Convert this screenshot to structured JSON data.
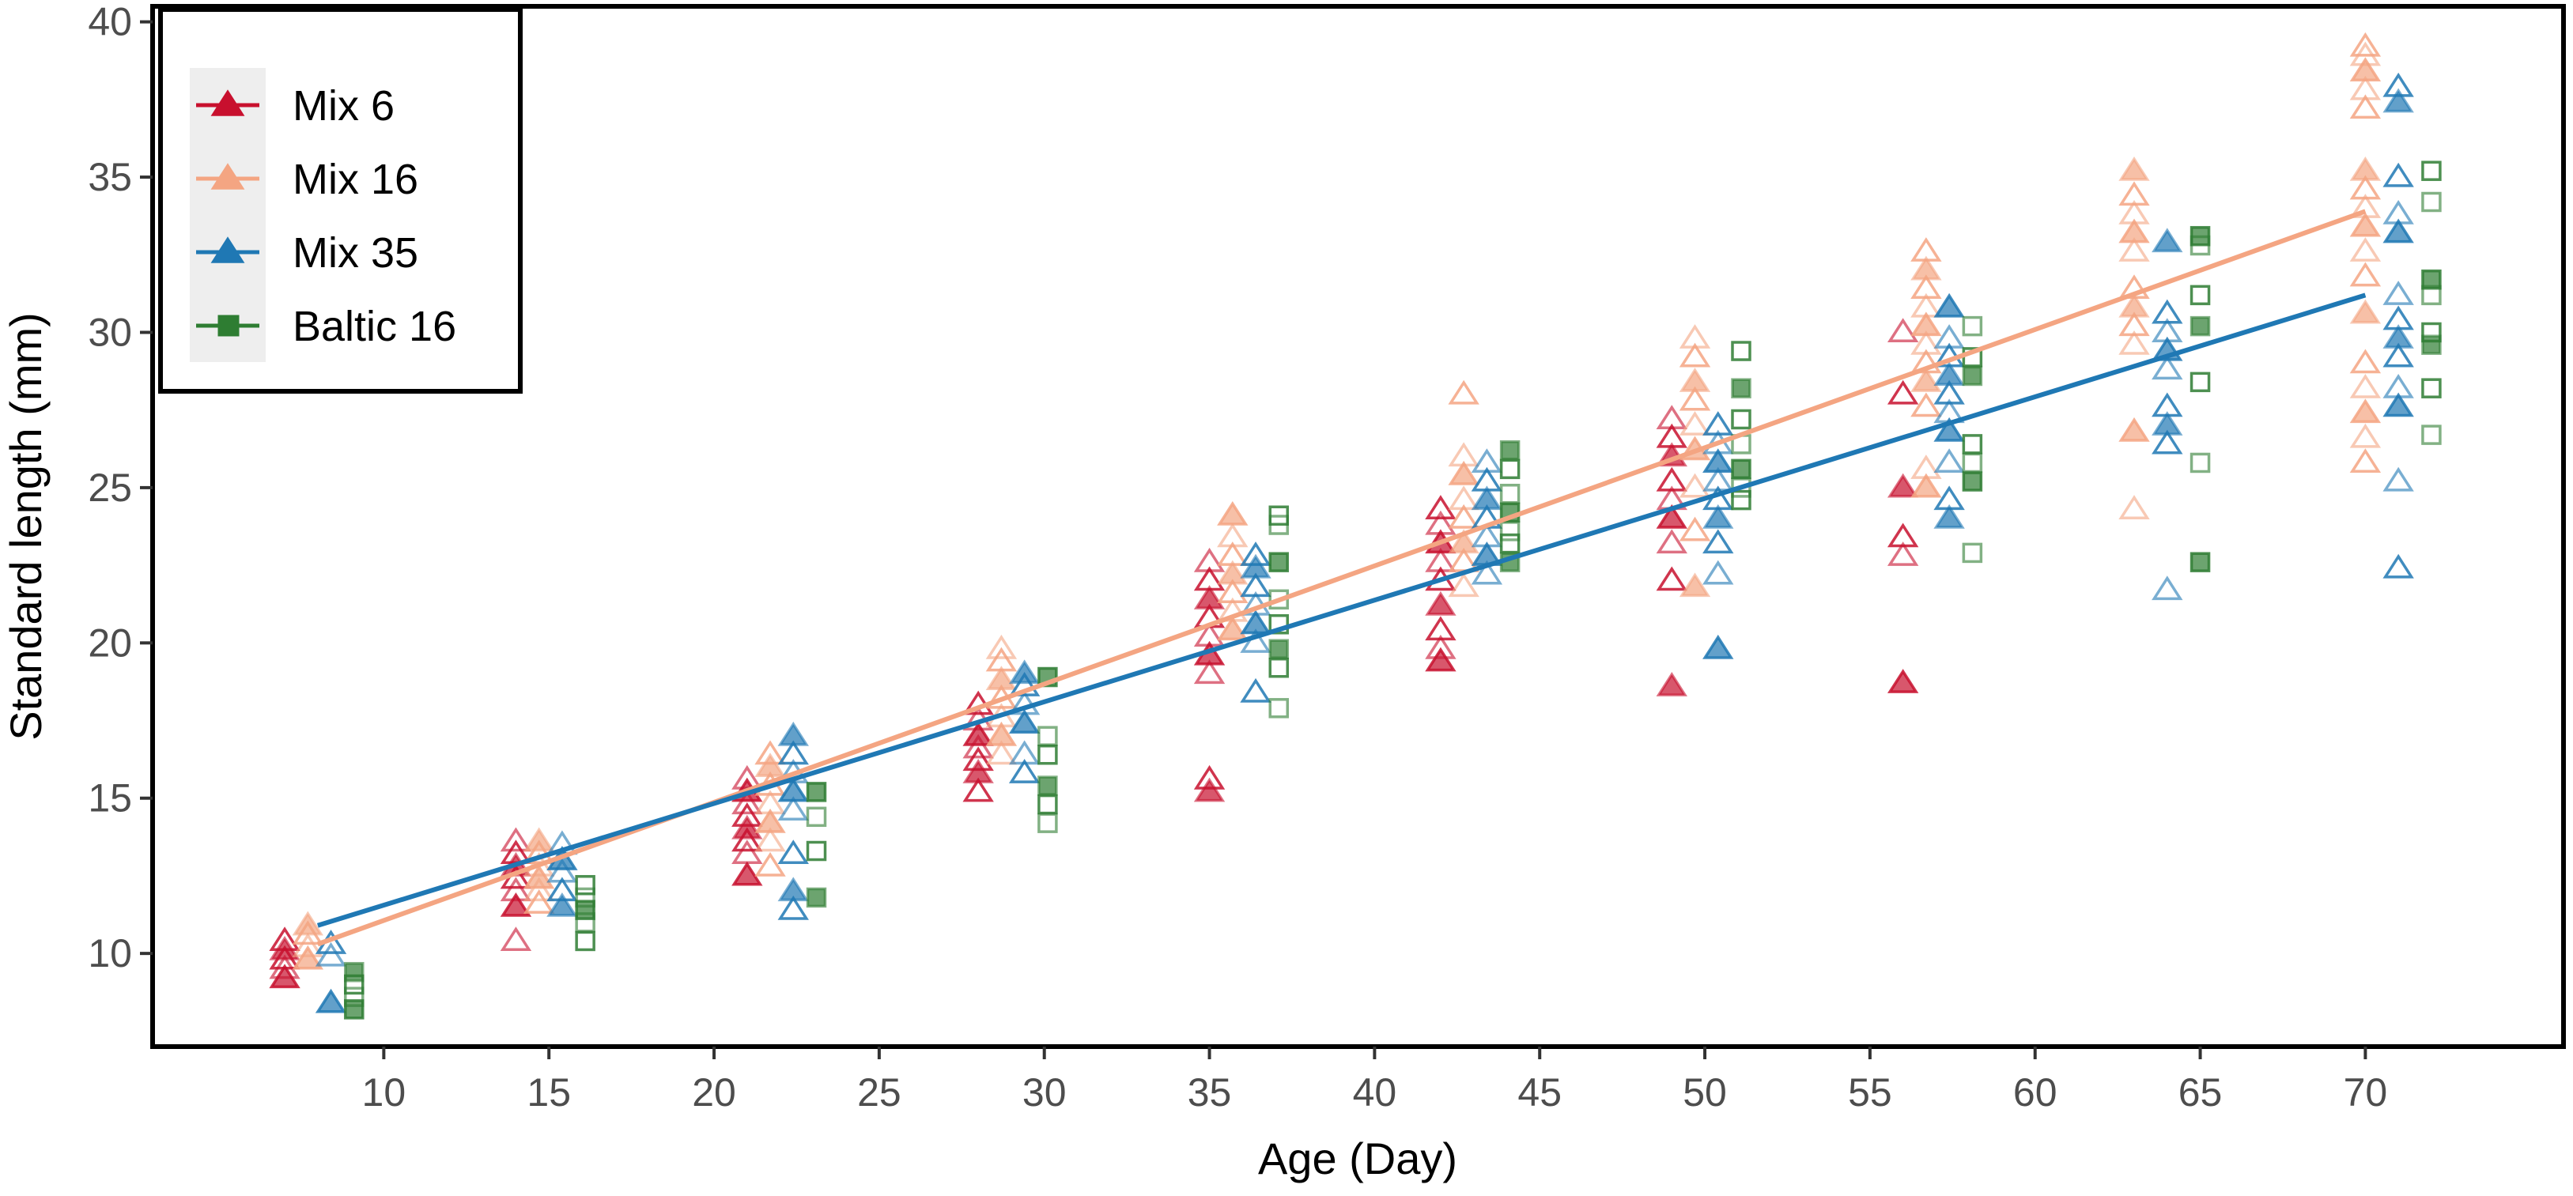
{
  "chart_data": {
    "type": "scatter",
    "title": "",
    "xlabel": "Age (Day)",
    "ylabel": "Standard length (mm)",
    "xlim": [
      3,
      76
    ],
    "ylim": [
      7,
      40.5
    ],
    "xticks": [
      10,
      15,
      20,
      25,
      30,
      35,
      40,
      45,
      50,
      55,
      60,
      65,
      70
    ],
    "yticks": [
      10,
      15,
      20,
      25,
      30,
      35,
      40
    ],
    "grid": false,
    "legend_position": "top-left",
    "colors": {
      "Mix 6": "#c8102e",
      "Mix 16": "#f4a582",
      "Mix 35": "#1f78b4",
      "Baltic 16": "#2e7d32"
    },
    "series": [
      {
        "name": "Mix 6",
        "marker": "triangle",
        "x_offset": -0.7,
        "points": [
          [
            7,
            9.2
          ],
          [
            7,
            9.5
          ],
          [
            7,
            9.8
          ],
          [
            7,
            10.1
          ],
          [
            7,
            10.4
          ],
          [
            14,
            10.4
          ],
          [
            14,
            11.5
          ],
          [
            14,
            12.0
          ],
          [
            14,
            12.4
          ],
          [
            14,
            12.8
          ],
          [
            14,
            13.2
          ],
          [
            14,
            13.6
          ],
          [
            21,
            12.5
          ],
          [
            21,
            13.2
          ],
          [
            21,
            13.6
          ],
          [
            21,
            14.0
          ],
          [
            21,
            14.4
          ],
          [
            21,
            14.8
          ],
          [
            21,
            15.2
          ],
          [
            21,
            15.6
          ],
          [
            28,
            15.2
          ],
          [
            28,
            15.8
          ],
          [
            28,
            16.2
          ],
          [
            28,
            16.6
          ],
          [
            28,
            17.0
          ],
          [
            28,
            17.5
          ],
          [
            28,
            18.0
          ],
          [
            35,
            15.2
          ],
          [
            35,
            15.6
          ],
          [
            35,
            19.0
          ],
          [
            35,
            19.6
          ],
          [
            35,
            20.2
          ],
          [
            35,
            20.8
          ],
          [
            35,
            21.4
          ],
          [
            35,
            22.0
          ],
          [
            35,
            22.6
          ],
          [
            42,
            19.4
          ],
          [
            42,
            19.8
          ],
          [
            42,
            20.4
          ],
          [
            42,
            21.2
          ],
          [
            42,
            22.0
          ],
          [
            42,
            22.6
          ],
          [
            42,
            23.2
          ],
          [
            42,
            23.8
          ],
          [
            42,
            24.3
          ],
          [
            49,
            18.6
          ],
          [
            49,
            22.0
          ],
          [
            49,
            23.2
          ],
          [
            49,
            24.0
          ],
          [
            49,
            24.6
          ],
          [
            49,
            25.2
          ],
          [
            49,
            26.0
          ],
          [
            49,
            26.6
          ],
          [
            49,
            27.2
          ],
          [
            56,
            18.7
          ],
          [
            56,
            22.8
          ],
          [
            56,
            23.4
          ],
          [
            56,
            25.0
          ],
          [
            56,
            28.0
          ],
          [
            56,
            30.0
          ]
        ]
      },
      {
        "name": "Mix 16",
        "marker": "triangle",
        "x_offset": 0,
        "points": [
          [
            7.7,
            9.8
          ],
          [
            7.7,
            10.2
          ],
          [
            7.7,
            10.6
          ],
          [
            7.7,
            10.9
          ],
          [
            14.7,
            11.6
          ],
          [
            14.7,
            12.0
          ],
          [
            14.7,
            12.4
          ],
          [
            14.7,
            12.8
          ],
          [
            14.7,
            13.2
          ],
          [
            14.7,
            13.6
          ],
          [
            21.7,
            12.8
          ],
          [
            21.7,
            13.6
          ],
          [
            21.7,
            14.2
          ],
          [
            21.7,
            14.8
          ],
          [
            21.7,
            15.4
          ],
          [
            21.7,
            16.0
          ],
          [
            21.7,
            16.4
          ],
          [
            28.7,
            16.4
          ],
          [
            28.7,
            17.0
          ],
          [
            28.7,
            17.6
          ],
          [
            28.7,
            18.2
          ],
          [
            28.7,
            18.8
          ],
          [
            28.7,
            19.4
          ],
          [
            28.7,
            19.8
          ],
          [
            35.7,
            20.4
          ],
          [
            35.7,
            21.0
          ],
          [
            35.7,
            21.6
          ],
          [
            35.7,
            22.2
          ],
          [
            35.7,
            22.8
          ],
          [
            35.7,
            23.4
          ],
          [
            35.7,
            24.1
          ],
          [
            42.7,
            21.8
          ],
          [
            42.7,
            22.6
          ],
          [
            42.7,
            23.2
          ],
          [
            42.7,
            24.0
          ],
          [
            42.7,
            24.6
          ],
          [
            42.7,
            25.4
          ],
          [
            42.7,
            26.0
          ],
          [
            42.7,
            28.0
          ],
          [
            49.7,
            21.8
          ],
          [
            49.7,
            23.6
          ],
          [
            49.7,
            25.0
          ],
          [
            49.7,
            26.2
          ],
          [
            49.7,
            27.0
          ],
          [
            49.7,
            27.8
          ],
          [
            49.7,
            28.4
          ],
          [
            49.7,
            29.2
          ],
          [
            49.7,
            29.8
          ],
          [
            56.7,
            25.0
          ],
          [
            56.7,
            25.6
          ],
          [
            56.7,
            27.6
          ],
          [
            56.7,
            28.4
          ],
          [
            56.7,
            29.0
          ],
          [
            56.7,
            29.6
          ],
          [
            56.7,
            30.2
          ],
          [
            56.7,
            30.8
          ],
          [
            56.7,
            31.4
          ],
          [
            56.7,
            32.0
          ],
          [
            56.7,
            32.6
          ],
          [
            63,
            24.3
          ],
          [
            63,
            26.8
          ],
          [
            63,
            29.6
          ],
          [
            63,
            30.2
          ],
          [
            63,
            30.8
          ],
          [
            63,
            31.4
          ],
          [
            63,
            32.6
          ],
          [
            63,
            33.2
          ],
          [
            63,
            33.8
          ],
          [
            63,
            34.4
          ],
          [
            63,
            35.2
          ],
          [
            70,
            25.8
          ],
          [
            70,
            26.6
          ],
          [
            70,
            27.4
          ],
          [
            70,
            28.2
          ],
          [
            70,
            29.0
          ],
          [
            70,
            30.6
          ],
          [
            70,
            31.8
          ],
          [
            70,
            32.6
          ],
          [
            70,
            33.4
          ],
          [
            70,
            34.0
          ],
          [
            70,
            34.6
          ],
          [
            70,
            35.2
          ],
          [
            70,
            37.2
          ],
          [
            70,
            37.8
          ],
          [
            70,
            38.4
          ],
          [
            70,
            38.9
          ],
          [
            70,
            39.2
          ]
        ]
      },
      {
        "name": "Mix 35",
        "marker": "triangle",
        "x_offset": 0.7,
        "points": [
          [
            8.4,
            8.4
          ],
          [
            8.4,
            9.9
          ],
          [
            8.4,
            10.3
          ],
          [
            15.4,
            11.5
          ],
          [
            15.4,
            12.0
          ],
          [
            15.4,
            12.6
          ],
          [
            15.4,
            13.0
          ],
          [
            15.4,
            13.5
          ],
          [
            22.4,
            11.4
          ],
          [
            22.4,
            12.0
          ],
          [
            22.4,
            13.2
          ],
          [
            22.4,
            14.6
          ],
          [
            22.4,
            15.2
          ],
          [
            22.4,
            15.8
          ],
          [
            22.4,
            16.4
          ],
          [
            22.4,
            17.0
          ],
          [
            29.4,
            15.8
          ],
          [
            29.4,
            16.4
          ],
          [
            29.4,
            17.4
          ],
          [
            29.4,
            18.0
          ],
          [
            29.4,
            18.6
          ],
          [
            29.4,
            19.0
          ],
          [
            36.4,
            18.4
          ],
          [
            36.4,
            20.0
          ],
          [
            36.4,
            20.6
          ],
          [
            36.4,
            21.2
          ],
          [
            36.4,
            21.8
          ],
          [
            36.4,
            22.4
          ],
          [
            36.4,
            22.8
          ],
          [
            43.4,
            22.2
          ],
          [
            43.4,
            22.8
          ],
          [
            43.4,
            23.4
          ],
          [
            43.4,
            24.0
          ],
          [
            43.4,
            24.6
          ],
          [
            43.4,
            25.2
          ],
          [
            43.4,
            25.8
          ],
          [
            50.4,
            19.8
          ],
          [
            50.4,
            22.2
          ],
          [
            50.4,
            23.2
          ],
          [
            50.4,
            24.0
          ],
          [
            50.4,
            24.6
          ],
          [
            50.4,
            25.2
          ],
          [
            50.4,
            25.8
          ],
          [
            50.4,
            26.4
          ],
          [
            50.4,
            27.0
          ],
          [
            57.4,
            24.0
          ],
          [
            57.4,
            24.6
          ],
          [
            57.4,
            25.8
          ],
          [
            57.4,
            26.8
          ],
          [
            57.4,
            27.4
          ],
          [
            57.4,
            28.0
          ],
          [
            57.4,
            28.6
          ],
          [
            57.4,
            29.2
          ],
          [
            57.4,
            29.8
          ],
          [
            57.4,
            30.8
          ],
          [
            64,
            21.7
          ],
          [
            64,
            26.4
          ],
          [
            64,
            27.0
          ],
          [
            64,
            27.6
          ],
          [
            64,
            28.8
          ],
          [
            64,
            29.4
          ],
          [
            64,
            30.0
          ],
          [
            64,
            30.6
          ],
          [
            64,
            32.9
          ],
          [
            71,
            22.4
          ],
          [
            71,
            25.2
          ],
          [
            71,
            27.6
          ],
          [
            71,
            28.2
          ],
          [
            71,
            29.2
          ],
          [
            71,
            29.8
          ],
          [
            71,
            30.4
          ],
          [
            71,
            31.2
          ],
          [
            71,
            33.2
          ],
          [
            71,
            33.8
          ],
          [
            71,
            35.0
          ],
          [
            71,
            37.4
          ],
          [
            71,
            37.9
          ]
        ]
      },
      {
        "name": "Baltic 16",
        "marker": "square",
        "x_offset": 1.4,
        "points": [
          [
            9.1,
            8.2
          ],
          [
            9.1,
            8.6
          ],
          [
            9.1,
            9.0
          ],
          [
            9.1,
            9.4
          ],
          [
            16.1,
            10.4
          ],
          [
            16.1,
            11.0
          ],
          [
            16.1,
            11.4
          ],
          [
            16.1,
            11.8
          ],
          [
            16.1,
            12.2
          ],
          [
            23.1,
            11.8
          ],
          [
            23.1,
            13.3
          ],
          [
            23.1,
            14.4
          ],
          [
            23.1,
            15.2
          ],
          [
            30.1,
            14.2
          ],
          [
            30.1,
            14.8
          ],
          [
            30.1,
            15.4
          ],
          [
            30.1,
            16.4
          ],
          [
            30.1,
            17.0
          ],
          [
            30.1,
            18.9
          ],
          [
            37.1,
            17.9
          ],
          [
            37.1,
            19.2
          ],
          [
            37.1,
            19.8
          ],
          [
            37.1,
            20.6
          ],
          [
            37.1,
            21.4
          ],
          [
            37.1,
            22.6
          ],
          [
            37.1,
            23.8
          ],
          [
            37.1,
            24.1
          ],
          [
            44.1,
            22.6
          ],
          [
            44.1,
            23.2
          ],
          [
            44.1,
            23.6
          ],
          [
            44.1,
            24.2
          ],
          [
            44.1,
            24.8
          ],
          [
            44.1,
            25.6
          ],
          [
            44.1,
            26.2
          ],
          [
            51.1,
            24.6
          ],
          [
            51.1,
            25.0
          ],
          [
            51.1,
            25.6
          ],
          [
            51.1,
            26.4
          ],
          [
            51.1,
            27.2
          ],
          [
            51.1,
            28.2
          ],
          [
            51.1,
            29.4
          ],
          [
            58.1,
            22.9
          ],
          [
            58.1,
            25.2
          ],
          [
            58.1,
            25.8
          ],
          [
            58.1,
            26.4
          ],
          [
            58.1,
            28.6
          ],
          [
            58.1,
            29.2
          ],
          [
            58.1,
            30.2
          ],
          [
            65,
            22.6
          ],
          [
            65,
            25.8
          ],
          [
            65,
            28.4
          ],
          [
            65,
            30.2
          ],
          [
            65,
            31.2
          ],
          [
            65,
            32.8
          ],
          [
            65,
            33.1
          ],
          [
            72,
            26.7
          ],
          [
            72,
            28.2
          ],
          [
            72,
            29.6
          ],
          [
            72,
            30.0
          ],
          [
            72,
            31.2
          ],
          [
            72,
            31.7
          ],
          [
            72,
            34.2
          ],
          [
            72,
            35.2
          ]
        ]
      }
    ],
    "trend_lines": [
      {
        "name": "Mix 16",
        "x": [
          8,
          70
        ],
        "y": [
          10.3,
          33.9
        ]
      },
      {
        "name": "Mix 35",
        "x": [
          8,
          70
        ],
        "y": [
          10.9,
          31.2
        ]
      }
    ]
  },
  "legend": {
    "items": [
      {
        "label": "Mix 6",
        "marker": "triangle",
        "color": "#c8102e"
      },
      {
        "label": "Mix 16",
        "marker": "triangle",
        "color": "#f4a582"
      },
      {
        "label": "Mix 35",
        "marker": "triangle",
        "color": "#1f78b4"
      },
      {
        "label": "Baltic 16",
        "marker": "square",
        "color": "#2e7d32"
      }
    ]
  }
}
